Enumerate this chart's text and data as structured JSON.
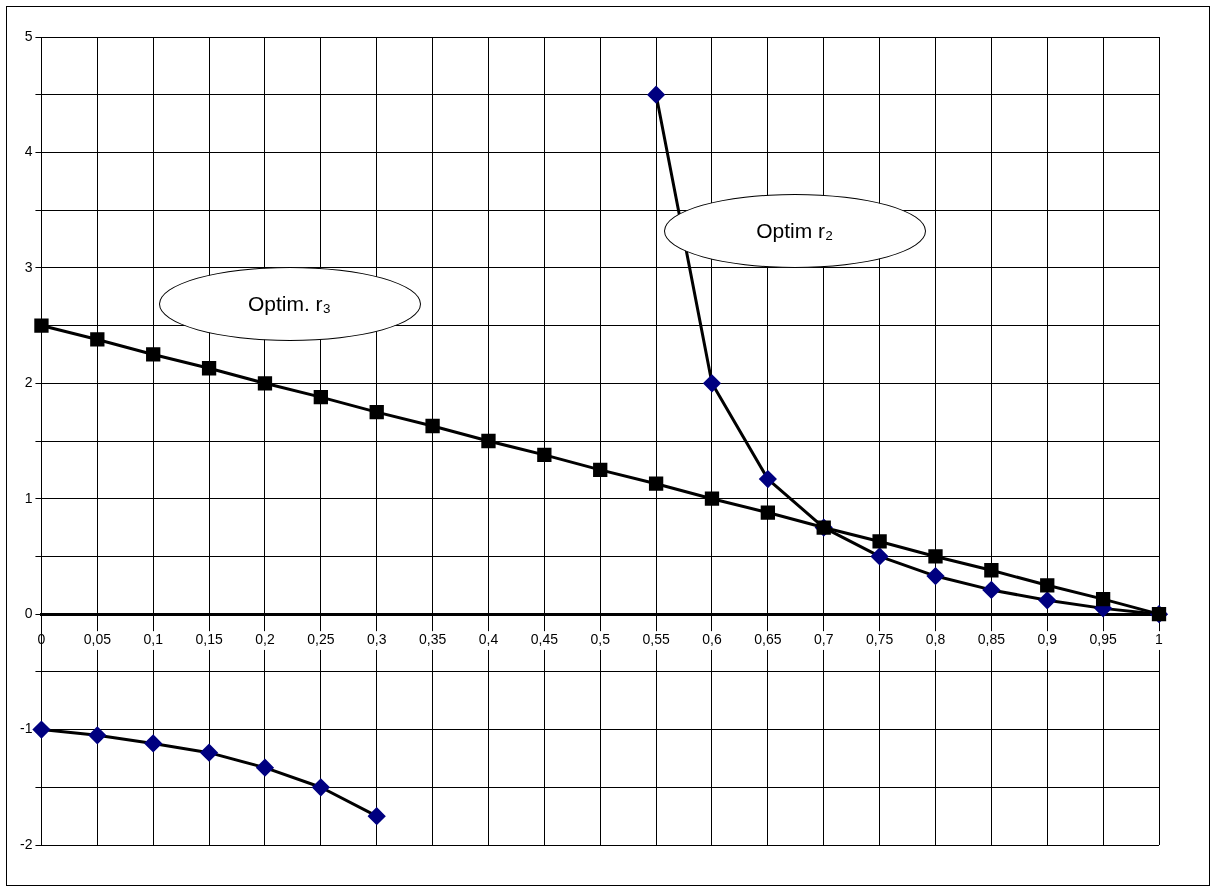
{
  "chart_data": {
    "type": "line",
    "categories": [
      "0",
      "0,05",
      "0,1",
      "0,15",
      "0,2",
      "0,25",
      "0,3",
      "0,35",
      "0,4",
      "0,45",
      "0,5",
      "0,55",
      "0,6",
      "0,65",
      "0,7",
      "0,75",
      "0,8",
      "0,85",
      "0,9",
      "0,95",
      "1"
    ],
    "series": [
      {
        "color": "#000000",
        "marker": "square",
        "values": [
          2.5,
          2.38,
          2.25,
          2.13,
          2,
          1.88,
          1.75,
          1.63,
          1.5,
          1.38,
          1.25,
          1.13,
          1,
          0.88,
          0.75,
          0.63,
          0.5,
          0.38,
          0.25,
          0.13,
          0
        ]
      },
      {
        "color": "#000080",
        "marker": "diamond",
        "values": [
          -1,
          -1.05,
          -1.12,
          -1.2,
          -1.33,
          -1.5,
          -1.75,
          null,
          null,
          null,
          null,
          4.5,
          2,
          1.17,
          0.75,
          0.5,
          0.33,
          0.21,
          0.12,
          0.05,
          0
        ]
      }
    ],
    "ylim": [
      -2,
      5
    ],
    "yticks": [
      -2,
      {
        "value": -1.5,
        "label": null
      },
      -1,
      {
        "value": -0.5,
        "label": null
      },
      0,
      {
        "value": 0.5,
        "label": null
      },
      1,
      {
        "value": 1.5,
        "label": null
      },
      2,
      {
        "value": 2.5,
        "label": null
      },
      3,
      {
        "value": 3.5,
        "label": null
      },
      4,
      {
        "value": 4.5,
        "label": null
      },
      5
    ],
    "grid": true,
    "legend": false,
    "line_style": "solid",
    "annotations": [
      "Optim. r₃",
      "Optim r₂"
    ]
  }
}
